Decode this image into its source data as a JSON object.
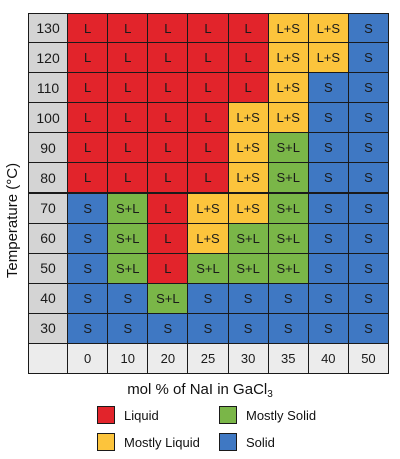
{
  "chart_data": {
    "type": "heatmap",
    "ylabel": "Temperature (°C)",
    "xlabel_main": "mol % of NaI in GaCl",
    "xlabel_sub": "3",
    "x": [
      "0",
      "10",
      "20",
      "25",
      "30",
      "35",
      "40",
      "50"
    ],
    "y": [
      "130",
      "120",
      "110",
      "100",
      "90",
      "80",
      "70",
      "60",
      "50",
      "40",
      "30"
    ],
    "cells": [
      [
        "L",
        "L",
        "L",
        "L",
        "L",
        "L+S",
        "L+S",
        "S"
      ],
      [
        "L",
        "L",
        "L",
        "L",
        "L",
        "L+S",
        "L+S",
        "S"
      ],
      [
        "L",
        "L",
        "L",
        "L",
        "L",
        "L+S",
        "S",
        "S"
      ],
      [
        "L",
        "L",
        "L",
        "L",
        "L+S",
        "L+S",
        "S",
        "S"
      ],
      [
        "L",
        "L",
        "L",
        "L",
        "L+S",
        "S+L",
        "S",
        "S"
      ],
      [
        "L",
        "L",
        "L",
        "L",
        "L+S",
        "S+L",
        "S",
        "S"
      ],
      [
        "S",
        "S+L",
        "L",
        "L+S",
        "L+S",
        "S+L",
        "S",
        "S"
      ],
      [
        "S",
        "S+L",
        "L",
        "L+S",
        "S+L",
        "S+L",
        "S",
        "S"
      ],
      [
        "S",
        "S+L",
        "L",
        "S+L",
        "S+L",
        "S+L",
        "S",
        "S"
      ],
      [
        "S",
        "S",
        "S+L",
        "S",
        "S",
        "S",
        "S",
        "S"
      ],
      [
        "S",
        "S",
        "S",
        "S",
        "S",
        "S",
        "S",
        "S"
      ]
    ],
    "colors": {
      "L": "#e2242b",
      "L+S": "#fcc43c",
      "S+L": "#7ab648",
      "S": "#3f78c3",
      "header": "#d4d4d4",
      "corner": "#ececec"
    },
    "legend": [
      {
        "key": "L",
        "label": "Liquid"
      },
      {
        "key": "S+L",
        "label": "Mostly Solid"
      },
      {
        "key": "L+S",
        "label": "Mostly Liquid"
      },
      {
        "key": "S",
        "label": "Solid"
      }
    ]
  }
}
